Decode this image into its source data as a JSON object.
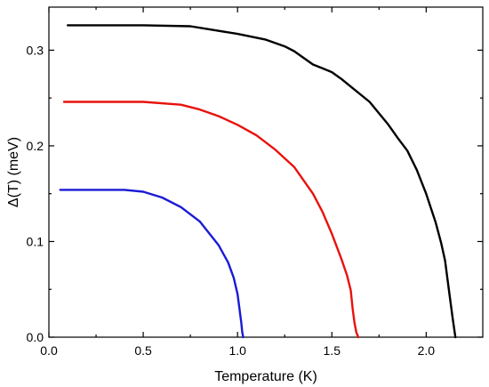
{
  "chart_data": {
    "type": "line",
    "title": "",
    "xlabel": "Temperature  (K)",
    "ylabel": "Δ(T)  (meV)",
    "xlim": [
      0.0,
      2.3
    ],
    "ylim": [
      0.0,
      0.345
    ],
    "grid": false,
    "x_ticks": [
      {
        "value": 0.0,
        "label": "0.0"
      },
      {
        "value": 0.5,
        "label": "0.5"
      },
      {
        "value": 1.0,
        "label": "1.0"
      },
      {
        "value": 1.5,
        "label": "1.5"
      },
      {
        "value": 2.0,
        "label": "2.0"
      }
    ],
    "y_ticks": [
      {
        "value": 0.0,
        "label": "0.0"
      },
      {
        "value": 0.1,
        "label": "0.1"
      },
      {
        "value": 0.2,
        "label": "0.2"
      },
      {
        "value": 0.3,
        "label": "0.3"
      }
    ],
    "series": [
      {
        "color": "#000000",
        "x": [
          0.1,
          0.3,
          0.5,
          0.75,
          1.0,
          1.15,
          1.25,
          1.3,
          1.35,
          1.4,
          1.45,
          1.5,
          1.55,
          1.6,
          1.7,
          1.8,
          1.85,
          1.9,
          1.95,
          2.0,
          2.05,
          2.08,
          2.1,
          2.12,
          2.14,
          2.155
        ],
        "y": [
          0.326,
          0.326,
          0.326,
          0.325,
          0.317,
          0.311,
          0.304,
          0.299,
          0.292,
          0.285,
          0.281,
          0.277,
          0.27,
          0.262,
          0.246,
          0.222,
          0.208,
          0.195,
          0.175,
          0.15,
          0.12,
          0.098,
          0.08,
          0.05,
          0.02,
          0.0
        ]
      },
      {
        "color": "#e8120c",
        "x": [
          0.08,
          0.3,
          0.5,
          0.7,
          0.8,
          0.9,
          1.0,
          1.1,
          1.2,
          1.3,
          1.4,
          1.45,
          1.5,
          1.55,
          1.58,
          1.6,
          1.61,
          1.62,
          1.63,
          1.64
        ],
        "y": [
          0.246,
          0.246,
          0.246,
          0.243,
          0.238,
          0.231,
          0.222,
          0.211,
          0.196,
          0.178,
          0.15,
          0.131,
          0.108,
          0.082,
          0.065,
          0.049,
          0.03,
          0.015,
          0.005,
          0.0
        ]
      },
      {
        "color": "#1a1ad6",
        "x": [
          0.06,
          0.2,
          0.4,
          0.5,
          0.6,
          0.7,
          0.8,
          0.9,
          0.95,
          0.98,
          1.0,
          1.01,
          1.02,
          1.025,
          1.03
        ],
        "y": [
          0.154,
          0.154,
          0.154,
          0.152,
          0.146,
          0.136,
          0.121,
          0.096,
          0.078,
          0.062,
          0.045,
          0.03,
          0.015,
          0.005,
          0.0
        ]
      }
    ]
  }
}
